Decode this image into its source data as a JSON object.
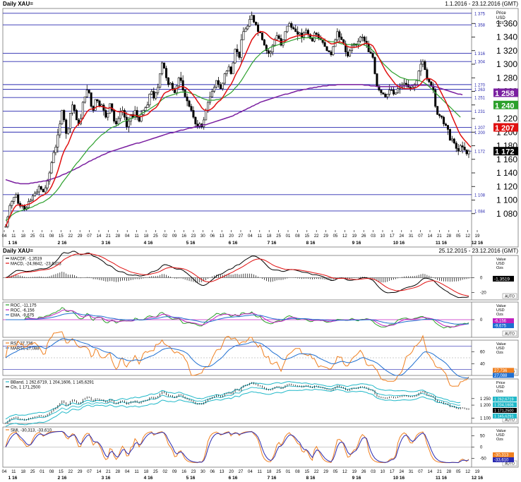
{
  "header": {
    "symbol": "Daily XAU=",
    "range": "1.1.2016 - 23.12.2016 (GMT)",
    "symbol2": "Daily XAU=",
    "range2": "25.12.2015 - 23.12.2016 (GMT)"
  },
  "axis_unit_main": [
    "Price",
    "USD",
    "Ozs"
  ],
  "axis_unit_value": [
    "Value",
    "USD",
    "Ozs"
  ],
  "axis_unit_price": [
    "Price",
    "USD",
    "Ozs"
  ],
  "auto_label": "AUTO",
  "colors": {
    "candle": "#000000",
    "ma_red": "#e01010",
    "ma_green": "#2ca02c",
    "ma_purple": "#7a1fa0",
    "hline": "#2a2ab0",
    "blue": "#1f6fd1",
    "orange": "#f08020",
    "cyan": "#20b8c8",
    "magenta": "#c020c0"
  },
  "chart_data": [
    {
      "type": "candlestick",
      "title": "Daily XAU=",
      "ylim": [
        1060,
        1380
      ],
      "y_ticks": [
        1080,
        1100,
        1120,
        1140,
        1160,
        1180,
        1200,
        1220,
        1240,
        1260,
        1280,
        1300,
        1320,
        1340,
        1360
      ],
      "y_tick_labels": [
        "1 080",
        "1 100",
        "1 120",
        "1 140",
        "1 160",
        "1 180",
        "1 200",
        "1 220",
        "1 240",
        "1 260",
        "1 280",
        "1 300",
        "1 320",
        "1 340",
        "1 360"
      ],
      "hlines": [
        {
          "value": 1375,
          "label": "1 375"
        },
        {
          "value": 1358,
          "label": "1 358"
        },
        {
          "value": 1316,
          "label": "1 316"
        },
        {
          "value": 1304,
          "label": "1 304"
        },
        {
          "value": 1270,
          "label": "1 270"
        },
        {
          "value": 1263,
          "label": "1 263"
        },
        {
          "value": 1251,
          "label": "1 251"
        },
        {
          "value": 1231,
          "label": "1 231"
        },
        {
          "value": 1207,
          "label": "1 207"
        },
        {
          "value": 1200,
          "label": "1 200"
        },
        {
          "value": 1172,
          "label": "1 172"
        },
        {
          "value": 1108,
          "label": "1 108"
        },
        {
          "value": 1084,
          "label": "1 084"
        }
      ],
      "price_tags": [
        {
          "label": "1 258",
          "value": 1258,
          "color": "#7a1fa0"
        },
        {
          "label": "1 240",
          "value": 1240,
          "color": "#2ca02c"
        },
        {
          "label": "1 207",
          "value": 1207,
          "color": "#e01010"
        },
        {
          "label": "1 172",
          "value": 1172,
          "color": "#000000"
        }
      ],
      "closes": [
        1061,
        1075,
        1092,
        1098,
        1104,
        1108,
        1095,
        1091,
        1092,
        1086,
        1089,
        1098,
        1100,
        1106,
        1110,
        1112,
        1120,
        1116,
        1112,
        1118,
        1128,
        1140,
        1155,
        1170,
        1178,
        1196,
        1212,
        1232,
        1218,
        1198,
        1205,
        1228,
        1240,
        1232,
        1218,
        1212,
        1220,
        1244,
        1252,
        1262,
        1258,
        1238,
        1232,
        1248,
        1246,
        1238,
        1240,
        1232,
        1222,
        1228,
        1242,
        1232,
        1216,
        1212,
        1220,
        1230,
        1232,
        1222,
        1208,
        1216,
        1226,
        1222,
        1232,
        1222,
        1216,
        1226,
        1232,
        1236,
        1240,
        1256,
        1260,
        1250,
        1258,
        1266,
        1286,
        1302,
        1294,
        1280,
        1270,
        1272,
        1264,
        1258,
        1268,
        1280,
        1276,
        1262,
        1252,
        1246,
        1238,
        1232,
        1222,
        1212,
        1208,
        1212,
        1208,
        1218,
        1232,
        1244,
        1252,
        1260,
        1266,
        1276,
        1270,
        1264,
        1272,
        1286,
        1290,
        1296,
        1286,
        1302,
        1322,
        1318,
        1310,
        1336,
        1348,
        1352,
        1356,
        1366,
        1372,
        1362,
        1358,
        1348,
        1346,
        1336,
        1328,
        1320,
        1316,
        1318,
        1328,
        1336,
        1342,
        1338,
        1328,
        1336,
        1348,
        1356,
        1360,
        1354,
        1352,
        1348,
        1344,
        1346,
        1340,
        1346,
        1350,
        1344,
        1338,
        1334,
        1346,
        1344,
        1338,
        1336,
        1332,
        1326,
        1320,
        1318,
        1314,
        1326,
        1336,
        1348,
        1340,
        1336,
        1330,
        1318,
        1312,
        1320,
        1328,
        1330,
        1328,
        1334,
        1340,
        1340,
        1334,
        1330,
        1318,
        1316,
        1310,
        1286,
        1268,
        1262,
        1258,
        1256,
        1252,
        1256,
        1262,
        1262,
        1256,
        1258,
        1264,
        1266,
        1270,
        1272,
        1270,
        1266,
        1264,
        1266,
        1270,
        1276,
        1290,
        1300,
        1304,
        1292,
        1278,
        1274,
        1268,
        1262,
        1238,
        1226,
        1224,
        1222,
        1212,
        1210,
        1204,
        1188,
        1190,
        1184,
        1176,
        1172,
        1180,
        1178,
        1174,
        1168,
        1172
      ],
      "ma_red": [
        1061,
        1068,
        1076,
        1082,
        1088,
        1092,
        1093,
        1092,
        1092,
        1092,
        1093,
        1094,
        1095,
        1097,
        1099,
        1101,
        1104,
        1106,
        1107,
        1109,
        1111,
        1115,
        1120,
        1127,
        1134,
        1143,
        1153,
        1164,
        1172,
        1178,
        1183,
        1191,
        1199,
        1205,
        1209,
        1212,
        1215,
        1220,
        1225,
        1230,
        1233,
        1234,
        1234,
        1236,
        1238,
        1238,
        1238,
        1237,
        1236,
        1235,
        1236,
        1235,
        1233,
        1231,
        1230,
        1230,
        1230,
        1229,
        1227,
        1226,
        1225,
        1225,
        1225,
        1224,
        1223,
        1223,
        1224,
        1225,
        1226,
        1229,
        1232,
        1234,
        1236,
        1240,
        1246,
        1252,
        1257,
        1259,
        1260,
        1262,
        1263,
        1263,
        1264,
        1266,
        1267,
        1267,
        1266,
        1264,
        1261,
        1258,
        1254,
        1250,
        1245,
        1241,
        1236,
        1233,
        1232,
        1232,
        1233,
        1235,
        1238,
        1242,
        1245,
        1247,
        1251,
        1256,
        1261,
        1266,
        1270,
        1276,
        1283,
        1289,
        1294,
        1301,
        1308,
        1315,
        1322,
        1329,
        1336,
        1340,
        1344,
        1346,
        1348,
        1348,
        1347,
        1345,
        1342,
        1339,
        1337,
        1336,
        1335,
        1334,
        1333,
        1333,
        1334,
        1336,
        1338,
        1339,
        1340,
        1341,
        1342,
        1342,
        1342,
        1343,
        1344,
        1344,
        1343,
        1342,
        1342,
        1342,
        1341,
        1340,
        1338,
        1336,
        1334,
        1332,
        1330,
        1330,
        1331,
        1332,
        1333,
        1332,
        1331,
        1328,
        1326,
        1325,
        1325,
        1325,
        1325,
        1326,
        1327,
        1329,
        1330,
        1331,
        1330,
        1329,
        1327,
        1322,
        1315,
        1309,
        1303,
        1297,
        1291,
        1286,
        1282,
        1278,
        1274,
        1270,
        1268,
        1266,
        1265,
        1264,
        1264,
        1264,
        1264,
        1264,
        1265,
        1266,
        1268,
        1271,
        1275,
        1278,
        1279,
        1279,
        1278,
        1276,
        1274,
        1269,
        1263,
        1257,
        1251,
        1245,
        1238,
        1231,
        1223,
        1216,
        1209,
        1202,
        1196,
        1192,
        1188,
        1185,
        1181,
        1178
      ],
      "ma_green": [
        1070,
        1072,
        1075,
        1078,
        1080,
        1082,
        1083,
        1084,
        1085,
        1086,
        1087,
        1088,
        1089,
        1090,
        1092,
        1093,
        1095,
        1096,
        1097,
        1099,
        1101,
        1103,
        1106,
        1109,
        1112,
        1116,
        1120,
        1125,
        1129,
        1133,
        1137,
        1141,
        1146,
        1150,
        1154,
        1157,
        1161,
        1165,
        1169,
        1173,
        1177,
        1180,
        1183,
        1187,
        1190,
        1193,
        1196,
        1198,
        1200,
        1203,
        1205,
        1207,
        1208,
        1209,
        1211,
        1213,
        1215,
        1216,
        1217,
        1219,
        1220,
        1221,
        1223,
        1224,
        1225,
        1227,
        1229,
        1230,
        1232,
        1234,
        1236,
        1238,
        1240,
        1242,
        1245,
        1248,
        1250,
        1252,
        1253,
        1254,
        1255,
        1256,
        1257,
        1258,
        1259,
        1259,
        1259,
        1259,
        1258,
        1257,
        1256,
        1255,
        1253,
        1252,
        1250,
        1249,
        1248,
        1247,
        1247,
        1247,
        1247,
        1248,
        1248,
        1249,
        1250,
        1252,
        1254,
        1256,
        1258,
        1261,
        1265,
        1268,
        1272,
        1276,
        1281,
        1286,
        1291,
        1296,
        1301,
        1305,
        1309,
        1312,
        1315,
        1318,
        1320,
        1322,
        1323,
        1325,
        1326,
        1327,
        1328,
        1329,
        1330,
        1331,
        1332,
        1333,
        1334,
        1335,
        1336,
        1337,
        1338,
        1338,
        1339,
        1339,
        1339,
        1339,
        1339,
        1339,
        1339,
        1338,
        1338,
        1337,
        1336,
        1335,
        1334,
        1334,
        1333,
        1333,
        1332,
        1332,
        1331,
        1330,
        1330,
        1329,
        1329,
        1329,
        1329,
        1329,
        1329,
        1329,
        1329,
        1329,
        1328,
        1327,
        1325,
        1323,
        1320,
        1317,
        1313,
        1309,
        1305,
        1301,
        1298,
        1295,
        1292,
        1289,
        1287,
        1285,
        1283,
        1281,
        1280,
        1279,
        1278,
        1277,
        1277,
        1277,
        1277,
        1277,
        1276,
        1275,
        1274,
        1272,
        1270,
        1267,
        1264,
        1261,
        1258,
        1255,
        1252,
        1249,
        1246,
        1243,
        1240,
        1237,
        1234,
        1231,
        1228,
        1225,
        1222
      ],
      "ma_purple": [
        1130,
        1129,
        1128,
        1127,
        1126,
        1125,
        1125,
        1124,
        1124,
        1124,
        1124,
        1124,
        1125,
        1125,
        1126,
        1126,
        1127,
        1127,
        1128,
        1128,
        1129,
        1130,
        1131,
        1132,
        1133,
        1134,
        1135,
        1137,
        1138,
        1139,
        1141,
        1142,
        1144,
        1145,
        1147,
        1148,
        1150,
        1152,
        1153,
        1155,
        1157,
        1158,
        1160,
        1161,
        1163,
        1164,
        1166,
        1167,
        1168,
        1170,
        1171,
        1172,
        1173,
        1174,
        1175,
        1176,
        1177,
        1178,
        1179,
        1180,
        1181,
        1182,
        1183,
        1184,
        1184,
        1185,
        1186,
        1187,
        1188,
        1189,
        1190,
        1191,
        1192,
        1193,
        1194,
        1195,
        1196,
        1197,
        1198,
        1199,
        1199,
        1200,
        1201,
        1202,
        1203,
        1203,
        1204,
        1205,
        1206,
        1206,
        1207,
        1208,
        1208,
        1209,
        1210,
        1211,
        1211,
        1212,
        1213,
        1214,
        1215,
        1216,
        1217,
        1218,
        1219,
        1220,
        1221,
        1222,
        1223,
        1224,
        1226,
        1227,
        1229,
        1230,
        1232,
        1233,
        1235,
        1236,
        1238,
        1239,
        1241,
        1242,
        1244,
        1245,
        1246,
        1247,
        1248,
        1249,
        1250,
        1251,
        1252,
        1253,
        1254,
        1255,
        1256,
        1256,
        1257,
        1258,
        1259,
        1260,
        1261,
        1261,
        1262,
        1263,
        1263,
        1264,
        1265,
        1265,
        1266,
        1266,
        1267,
        1267,
        1268,
        1268,
        1268,
        1269,
        1269,
        1269,
        1269,
        1270,
        1270,
        1270,
        1270,
        1270,
        1270,
        1270,
        1270,
        1270,
        1270,
        1270,
        1270,
        1270,
        1269,
        1269,
        1269,
        1268,
        1268,
        1268,
        1267,
        1267,
        1267,
        1267,
        1267,
        1267,
        1267,
        1267,
        1267,
        1267,
        1267,
        1268,
        1268,
        1268,
        1268,
        1268,
        1268,
        1269,
        1269,
        1269,
        1269,
        1269,
        1269,
        1269,
        1269,
        1268,
        1268,
        1267,
        1267,
        1266,
        1265,
        1264,
        1263,
        1262,
        1261,
        1260,
        1259,
        1258,
        1257,
        1256,
        1256,
        1255
      ],
      "x_top_labels": [
        "04",
        "11",
        "18",
        "25",
        "01",
        "08",
        "15",
        "22",
        "29",
        "07",
        "14",
        "21",
        "28",
        "04",
        "11",
        "18",
        "25",
        "02",
        "09",
        "16",
        "23",
        "30",
        "06",
        "13",
        "20",
        "27",
        "04",
        "11",
        "18",
        "25",
        "01",
        "08",
        "15",
        "22",
        "29",
        "05",
        "12",
        "19",
        "26",
        "03",
        "10",
        "17",
        "24",
        "31",
        "07",
        "14",
        "21",
        "28",
        "05",
        "12",
        "19"
      ],
      "x_month_labels": [
        "1 16",
        "2 16",
        "3 16",
        "4 16",
        "5 16",
        "6 16",
        "7 16",
        "8 16",
        "9 16",
        "10 16",
        "11 16",
        "12 16"
      ]
    },
    {
      "type": "line",
      "title": "MACD",
      "legend": [
        {
          "text": "MACDF, -1,3519",
          "color": "#000000"
        },
        {
          "text": "MACD, -24,9842, -23,6323",
          "color": "#e01010"
        }
      ],
      "ylim": [
        -30,
        30
      ],
      "y_tick_labels": [
        "0",
        "-20"
      ],
      "value_tag": "-1,3519"
    },
    {
      "type": "line",
      "title": "ROC",
      "legend": [
        {
          "text": "ROC, -11,175",
          "color": "#2ca02c"
        },
        {
          "text": "ROC, -6,156",
          "color": "#c020c0"
        },
        {
          "text": "EMA, -9,675",
          "color": "#1f6fd1"
        }
      ],
      "ylim": [
        -15,
        15
      ],
      "y_tick_labels": [
        "0"
      ],
      "value_tags": [
        "-6,156",
        "-9,675"
      ]
    },
    {
      "type": "line",
      "title": "RSI",
      "legend": [
        {
          "text": "RSI, 27,736",
          "color": "#f08020"
        },
        {
          "text": "MARSI, 27,088",
          "color": "#1f6fd1"
        }
      ],
      "ylim": [
        20,
        80
      ],
      "y_tick_labels": [
        "60",
        "40"
      ],
      "value_tags": [
        "27,736",
        "27,088"
      ]
    },
    {
      "type": "line",
      "title": "Bollinger",
      "legend": [
        {
          "text": "BBand, 1 262,6719, 1 204,1606, 1 145,6291",
          "color": "#20b8c8"
        },
        {
          "text": "Cls, 1 171,2500",
          "color": "#000000"
        }
      ],
      "ylim": [
        1060,
        1400
      ],
      "y_tick_labels": [
        "1 250",
        "1 200",
        "1 100"
      ],
      "value_tags": [
        "1 262,6719",
        "1 204,1606",
        "1 171,2500",
        "1 145,6291"
      ]
    },
    {
      "type": "line",
      "title": "Stochastic",
      "legend": [
        {
          "text": "SMI, -30,313, -33,610",
          "color": "#f08020"
        }
      ],
      "ylim": [
        -90,
        90
      ],
      "y_tick_labels": [
        "50",
        "0",
        "-50"
      ],
      "value_tags": [
        "-30,313",
        "-33,610"
      ]
    }
  ]
}
